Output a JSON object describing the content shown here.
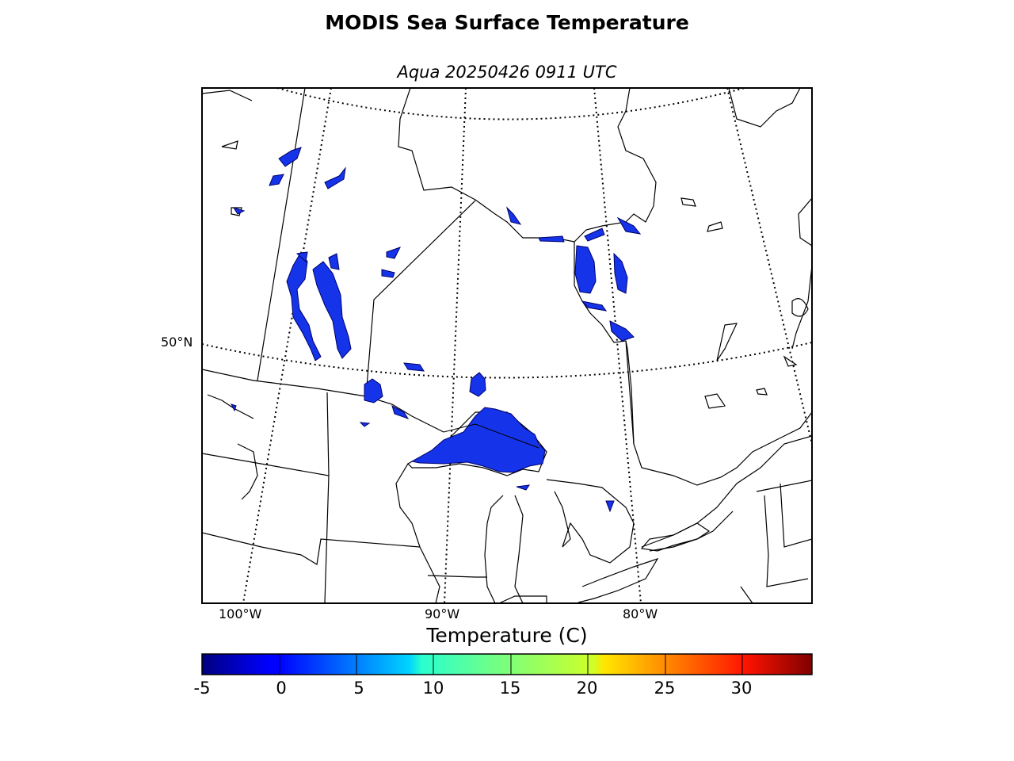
{
  "title": "MODIS Sea Surface Temperature",
  "subtitle": "Aqua 20250426 0911 UTC",
  "map": {
    "longitude_labels": [
      "100°W",
      "90°W",
      "80°W"
    ],
    "latitude_labels": [
      "50°N"
    ],
    "data_color_range_c": [
      -3,
      2
    ],
    "observed_color": "#1533e8",
    "land_color": "#ffffff",
    "coastline_color": "#000000"
  },
  "colorbar": {
    "label": "Temperature (C)",
    "ticks": [
      "-5",
      "0",
      "5",
      "10",
      "15",
      "20",
      "25",
      "30"
    ],
    "range": [
      -5,
      35
    ],
    "colormap": "jet"
  }
}
